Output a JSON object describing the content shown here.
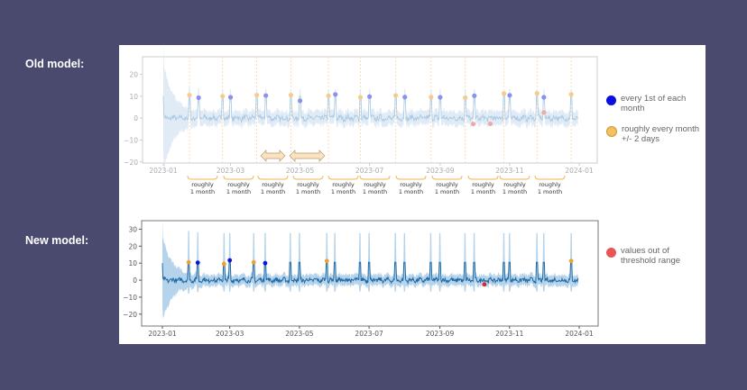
{
  "labels": {
    "old_model": "Old model:",
    "new_model": "New model:"
  },
  "legend": {
    "monthly_first": {
      "text": "every 1st of each month",
      "color": "#0a0ee0"
    },
    "roughly_monthly": {
      "text": "roughly every month +/- 2 days",
      "color": "#f5c060"
    },
    "out_of_threshold": {
      "text": "values out of threshold range",
      "color": "#e85555"
    }
  },
  "chart_data": [
    {
      "type": "line",
      "name": "old-model",
      "xlim": [
        "2023-01-01",
        "2024-01-01"
      ],
      "ylim": [
        -20.5,
        28
      ],
      "xticks": [
        "2023-01",
        "2023-03",
        "2023-05",
        "2023-07",
        "2023-09",
        "2023-11",
        "2024-01"
      ],
      "yticks": [
        20,
        10,
        0,
        -10,
        -20
      ],
      "band": "confidence interval shaded",
      "colors": {
        "line": "#a8c8e2",
        "band": "#dde9f5",
        "blue": "#8c90ee",
        "orange": "#f6cc8c",
        "red": "#f0a8a8",
        "vline": "#f9d9a6"
      },
      "orange_points": [
        [
          "2023-01-24",
          10.5
        ],
        [
          "2023-02-22",
          10
        ],
        [
          "2023-03-24",
          10.5
        ],
        [
          "2023-04-23",
          10.5
        ],
        [
          "2023-05-26",
          10.2
        ],
        [
          "2023-06-23",
          9.5
        ],
        [
          "2023-07-24",
          10.3
        ],
        [
          "2023-08-24",
          9.6
        ],
        [
          "2023-09-23",
          9.3
        ],
        [
          "2023-10-27",
          11.2
        ],
        [
          "2023-11-25",
          11.3
        ],
        [
          "2023-12-25",
          10.8
        ]
      ],
      "blue_points": [
        [
          "2023-02-01",
          9.3
        ],
        [
          "2023-03-01",
          9.5
        ],
        [
          "2023-04-01",
          10.3
        ],
        [
          "2023-05-01",
          7.9
        ],
        [
          "2023-06-01",
          10.8
        ],
        [
          "2023-07-01",
          9.8
        ],
        [
          "2023-08-01",
          9.6
        ],
        [
          "2023-09-01",
          9.5
        ],
        [
          "2023-10-01",
          10.2
        ],
        [
          "2023-11-01",
          10.4
        ],
        [
          "2023-12-01",
          9.5
        ]
      ],
      "red_points": [
        [
          "2023-09-30",
          -2.7
        ],
        [
          "2023-10-15",
          -2.6
        ],
        [
          "2023-12-01",
          2.6
        ]
      ],
      "annotations": {
        "bracket_label_line1": "roughly",
        "bracket_label_line2": "1 month",
        "bracket_count": 11
      }
    },
    {
      "type": "line",
      "name": "new-model",
      "xlim": [
        "2023-01-01",
        "2024-01-01"
      ],
      "ylim": [
        -27,
        35
      ],
      "xticks": [
        "2023-01",
        "2023-03",
        "2023-05",
        "2023-07",
        "2023-09",
        "2023-11",
        "2024-01"
      ],
      "yticks": [
        30,
        20,
        10,
        0,
        -10,
        -20
      ],
      "colors": {
        "line": "#1f6aa5",
        "band": "#a8cbe6",
        "blue": "#0a14e0",
        "orange": "#f0a030",
        "red": "#e02828"
      },
      "spike_dates": [
        "2023-01-24",
        "2023-02-01",
        "2023-02-24",
        "2023-03-01",
        "2023-03-22",
        "2023-04-01",
        "2023-04-23",
        "2023-05-01",
        "2023-05-25",
        "2023-06-01",
        "2023-06-23",
        "2023-07-01",
        "2023-07-24",
        "2023-08-01",
        "2023-08-24",
        "2023-09-01",
        "2023-09-23",
        "2023-10-01",
        "2023-10-27",
        "2023-11-01",
        "2023-11-25",
        "2023-12-01",
        "2023-12-25"
      ],
      "orange_points": [
        [
          "2023-01-24",
          10.5
        ],
        [
          "2023-02-24",
          9.5
        ],
        [
          "2023-03-22",
          10.5
        ],
        [
          "2023-05-25",
          11.3
        ],
        [
          "2023-12-25",
          11.3
        ]
      ],
      "blue_points": [
        [
          "2023-02-01",
          10.3
        ],
        [
          "2023-03-01",
          11.7
        ],
        [
          "2023-04-01",
          10
        ]
      ],
      "red_points": [
        [
          "2023-10-10",
          -2.5
        ]
      ]
    }
  ]
}
